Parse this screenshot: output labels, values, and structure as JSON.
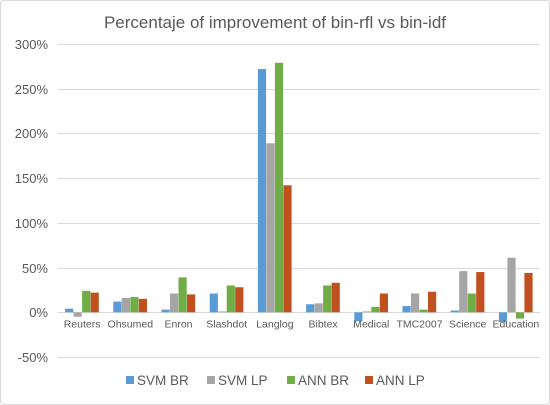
{
  "chart_data": {
    "type": "bar",
    "title": "Percentaje of improvement of bin-rfl vs bin-idf",
    "xlabel": "",
    "ylabel": "",
    "categories": [
      "Reuters",
      "Ohsumed",
      "Enron",
      "Slashdot",
      "Langlog",
      "Bibtex",
      "Medical",
      "TMC2007",
      "Science",
      "Education"
    ],
    "series": [
      {
        "name": "SVM BR",
        "color": "#5B9BD5",
        "values": [
          4,
          12,
          3,
          21,
          272,
          9,
          -10,
          7,
          2,
          -11
        ]
      },
      {
        "name": "SVM LP",
        "color": "#A5A5A5",
        "values": [
          -5,
          16,
          21,
          1,
          189,
          10,
          1,
          21,
          46,
          61
        ]
      },
      {
        "name": "ANN BR",
        "color": "#70AD47",
        "values": [
          24,
          17,
          39,
          30,
          279,
          30,
          6,
          3,
          21,
          -7
        ]
      },
      {
        "name": "ANN LP",
        "color": "#C0501F",
        "values": [
          22,
          15,
          20,
          28,
          142,
          33,
          21,
          23,
          45,
          44
        ]
      }
    ],
    "ylim": [
      -50,
      300
    ],
    "yticks": [
      -50,
      0,
      50,
      100,
      150,
      200,
      250,
      300
    ],
    "ytick_labels": [
      "-50%",
      "0%",
      "50%",
      "100%",
      "150%",
      "200%",
      "250%",
      "300%"
    ],
    "grid": true,
    "legend_position": "bottom",
    "gridline_color": "#D9D9D9"
  }
}
